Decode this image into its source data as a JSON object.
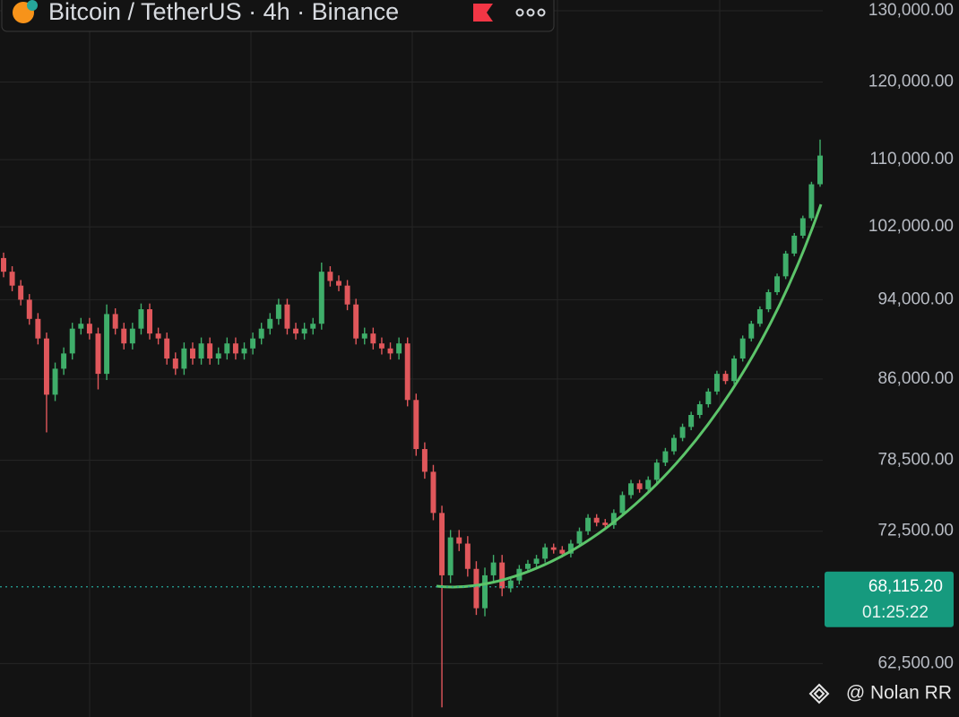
{
  "chart_data": {
    "type": "candlestick",
    "title": "Bitcoin / TetherUS · 4h · Binance",
    "watermark": "@ Nolan RR",
    "log_scale": true,
    "grid": true,
    "up_color": "#3fae6a",
    "down_color": "#e0575b",
    "ylim": [
      58860,
      131570
    ],
    "yticks": [
      {
        "value": 62500,
        "label": "62,500.00"
      },
      {
        "value": 72500,
        "label": "72,500.00"
      },
      {
        "value": 78500,
        "label": "78,500.00"
      },
      {
        "value": 86000,
        "label": "86,000.00"
      },
      {
        "value": 94000,
        "label": "94,000.00"
      },
      {
        "value": 102000,
        "label": "102,000.00"
      },
      {
        "value": 110000,
        "label": "110,000.00"
      },
      {
        "value": 120000,
        "label": "120,000.00"
      },
      {
        "value": 130000,
        "label": "130,000.00"
      }
    ],
    "last_price": 68115.2,
    "last_price_label": "68,115.20",
    "countdown": "01:25:22",
    "open": [
      98500,
      97000,
      95500,
      94000,
      92000,
      90000,
      84500,
      87000,
      88500,
      91000,
      91500,
      90500,
      86500,
      92500,
      91000,
      89500,
      91000,
      93000,
      90500,
      90000,
      88000,
      87000,
      89000,
      88000,
      89500,
      88000,
      88500,
      89500,
      88500,
      89000,
      90000,
      91000,
      92000,
      93500,
      91000,
      90500,
      91000,
      91500,
      97000,
      96000,
      95500,
      93500,
      90000,
      90500,
      89500,
      89000,
      88500,
      89500,
      84000,
      79500,
      77500,
      74000,
      69000,
      72000,
      71500,
      69500,
      66500,
      69000,
      70000,
      68000,
      68600,
      69500,
      69900,
      70300,
      71200,
      71000,
      70700,
      71500,
      72500,
      73600,
      73200,
      73000,
      74000,
      75500,
      76500,
      76000,
      76800,
      78300,
      79300,
      80500,
      81500,
      82600,
      83600,
      84800,
      86500,
      85800,
      88000,
      90000,
      91500,
      93000,
      94800,
      96500,
      99000,
      101000,
      103000,
      107000
    ],
    "high": [
      99100,
      97600,
      96100,
      94600,
      92600,
      90600,
      87600,
      89100,
      91600,
      92100,
      92100,
      91100,
      93500,
      93100,
      91600,
      91600,
      93600,
      93600,
      91100,
      90600,
      88600,
      89600,
      89600,
      90100,
      90100,
      89100,
      90100,
      90100,
      89600,
      90600,
      91600,
      92600,
      94100,
      94100,
      91600,
      91600,
      92100,
      98000,
      97600,
      96600,
      96100,
      94100,
      91100,
      91100,
      90100,
      89600,
      90100,
      90100,
      84600,
      80100,
      78100,
      74600,
      72600,
      72600,
      72100,
      70100,
      69600,
      70600,
      70600,
      68900,
      69800,
      70200,
      70600,
      71500,
      71500,
      71300,
      71800,
      72800,
      73900,
      73900,
      73500,
      74300,
      75800,
      76800,
      76800,
      77100,
      78600,
      79600,
      80800,
      81800,
      82900,
      83900,
      85100,
      86800,
      86800,
      88300,
      90300,
      91800,
      93300,
      95100,
      96800,
      99300,
      101300,
      103300,
      107300,
      112500
    ],
    "low": [
      96400,
      94900,
      93400,
      91400,
      89400,
      81000,
      83900,
      86400,
      87900,
      90400,
      89900,
      85000,
      85900,
      90400,
      88900,
      88900,
      90400,
      89900,
      89400,
      87400,
      86400,
      86400,
      87400,
      87400,
      87400,
      87400,
      87900,
      87900,
      87900,
      88400,
      89400,
      90400,
      91400,
      90400,
      89900,
      89900,
      90400,
      90900,
      95400,
      94900,
      92900,
      89400,
      89400,
      88900,
      88400,
      87900,
      87900,
      83400,
      78900,
      76900,
      73400,
      59500,
      68400,
      70900,
      68900,
      66000,
      65900,
      68400,
      67400,
      67700,
      68300,
      69200,
      69600,
      70000,
      70700,
      70400,
      70400,
      71200,
      72200,
      72900,
      72700,
      72700,
      73700,
      75200,
      75700,
      75700,
      76500,
      78000,
      79000,
      80200,
      81200,
      82300,
      83300,
      84500,
      85500,
      85500,
      87700,
      89700,
      91200,
      92700,
      94500,
      96200,
      98700,
      100700,
      102700,
      106700
    ],
    "close": [
      97000,
      95500,
      94000,
      92000,
      90000,
      84500,
      87000,
      88500,
      91000,
      91500,
      90500,
      86500,
      92500,
      91000,
      89500,
      91000,
      93000,
      90500,
      90000,
      88000,
      87000,
      89000,
      88000,
      89500,
      88000,
      88500,
      89500,
      88500,
      89000,
      90000,
      91000,
      92000,
      93500,
      91000,
      90500,
      91000,
      91500,
      97000,
      96000,
      95500,
      93500,
      90000,
      90500,
      89500,
      89000,
      88500,
      89500,
      84000,
      79500,
      77500,
      74000,
      69000,
      72000,
      71500,
      69500,
      66500,
      69000,
      70000,
      68000,
      68600,
      69500,
      69900,
      70300,
      71200,
      71000,
      70700,
      71500,
      72500,
      73600,
      73200,
      73000,
      74000,
      75500,
      76500,
      76000,
      76800,
      78300,
      79300,
      80500,
      81500,
      82600,
      83600,
      84800,
      86500,
      85800,
      88000,
      90000,
      91500,
      93000,
      94800,
      96500,
      99000,
      101000,
      103000,
      107000,
      110500
    ]
  }
}
